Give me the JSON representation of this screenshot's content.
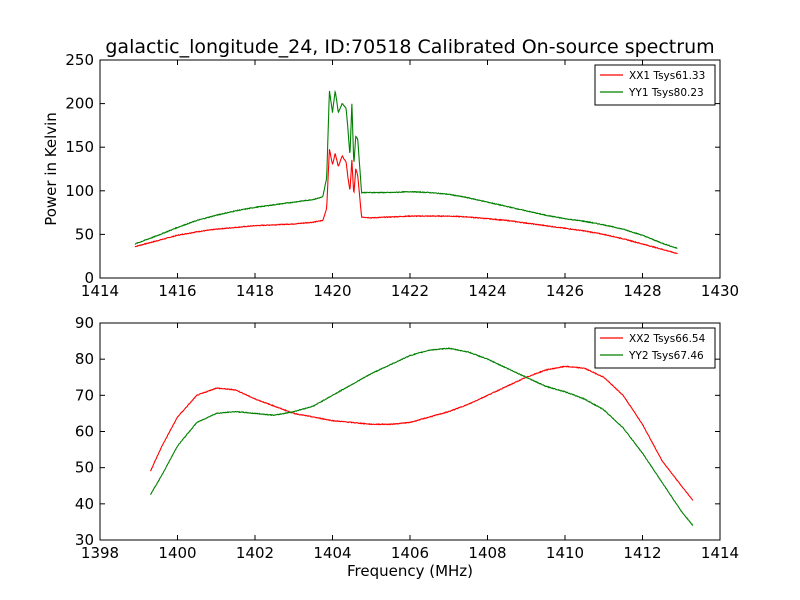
{
  "figure": {
    "title": "galactic_longitude_24, ID:70518 Calibrated On-source spectrum",
    "xlabel": "Frequency (MHz)"
  },
  "chart_data": [
    {
      "type": "line",
      "title": "galactic_longitude_24, ID:70518 Calibrated On-source spectrum",
      "xlabel": "",
      "ylabel": "Power in Kelvin",
      "xlim": [
        1414,
        1430
      ],
      "ylim": [
        0,
        250
      ],
      "xticks": [
        "1414",
        "1416",
        "1418",
        "1420",
        "1422",
        "1424",
        "1426",
        "1428",
        "1430"
      ],
      "yticks": [
        "0",
        "50",
        "100",
        "150",
        "200",
        "250"
      ],
      "grid": false,
      "legend": "upper right",
      "series": [
        {
          "name": "XX1 Tsys61.33",
          "color": "#ff0000",
          "x": [
            1414.9,
            1415.5,
            1416.0,
            1416.5,
            1417.0,
            1417.5,
            1418.0,
            1418.5,
            1419.0,
            1419.5,
            1419.75,
            1419.85,
            1419.92,
            1420.0,
            1420.07,
            1420.15,
            1420.25,
            1420.35,
            1420.4,
            1420.45,
            1420.5,
            1420.55,
            1420.6,
            1420.65,
            1420.75,
            1421.0,
            1421.5,
            1422.0,
            1422.5,
            1423.0,
            1423.5,
            1424.0,
            1424.5,
            1425.0,
            1425.5,
            1426.0,
            1426.5,
            1427.0,
            1427.5,
            1428.0,
            1428.5,
            1428.9
          ],
          "y": [
            36,
            43,
            49,
            53,
            56,
            58,
            60,
            61,
            62,
            64,
            66,
            80,
            148,
            130,
            143,
            128,
            140,
            133,
            115,
            100,
            135,
            95,
            125,
            118,
            70,
            69,
            70,
            71,
            71,
            71,
            70,
            68,
            66,
            63,
            60,
            57,
            54,
            50,
            45,
            39,
            33,
            28
          ]
        },
        {
          "name": "YY1 Tsys80.23",
          "color": "#008000",
          "x": [
            1414.9,
            1415.5,
            1416.0,
            1416.5,
            1417.0,
            1417.5,
            1418.0,
            1418.5,
            1419.0,
            1419.5,
            1419.75,
            1419.85,
            1419.92,
            1420.0,
            1420.07,
            1420.15,
            1420.25,
            1420.35,
            1420.4,
            1420.45,
            1420.5,
            1420.55,
            1420.6,
            1420.65,
            1420.75,
            1421.0,
            1421.5,
            1422.0,
            1422.5,
            1423.0,
            1423.5,
            1424.0,
            1424.5,
            1425.0,
            1425.5,
            1426.0,
            1426.5,
            1427.0,
            1427.5,
            1428.0,
            1428.5,
            1428.9
          ],
          "y": [
            39,
            49,
            58,
            66,
            72,
            77,
            81,
            84,
            87,
            90,
            93,
            115,
            215,
            190,
            215,
            190,
            200,
            195,
            170,
            140,
            200,
            130,
            162,
            160,
            98,
            98,
            98,
            99,
            98,
            96,
            92,
            87,
            82,
            77,
            72,
            68,
            65,
            61,
            56,
            49,
            40,
            34
          ]
        }
      ]
    },
    {
      "type": "line",
      "title": "",
      "xlabel": "Frequency (MHz)",
      "ylabel": "",
      "xlim": [
        1398,
        1414
      ],
      "ylim": [
        30,
        90
      ],
      "xticks": [
        "1398",
        "1400",
        "1402",
        "1404",
        "1406",
        "1408",
        "1410",
        "1412",
        "1414"
      ],
      "yticks": [
        "30",
        "40",
        "50",
        "60",
        "70",
        "80",
        "90"
      ],
      "grid": false,
      "legend": "upper right",
      "series": [
        {
          "name": "XX2 Tsys66.54",
          "color": "#ff0000",
          "x": [
            1399.3,
            1399.6,
            1400.0,
            1400.5,
            1401.0,
            1401.5,
            1402.0,
            1402.5,
            1403.0,
            1403.5,
            1404.0,
            1404.5,
            1405.0,
            1405.5,
            1406.0,
            1406.5,
            1407.0,
            1407.5,
            1408.0,
            1408.5,
            1409.0,
            1409.5,
            1410.0,
            1410.5,
            1411.0,
            1411.5,
            1412.0,
            1412.5,
            1413.0,
            1413.3
          ],
          "y": [
            49,
            56,
            64,
            70,
            72,
            71.5,
            69,
            67,
            65,
            64,
            63,
            62.5,
            62,
            62,
            62.5,
            64,
            65.5,
            67.5,
            70,
            72.5,
            75,
            77,
            78,
            77.5,
            75,
            70,
            62,
            52,
            45,
            41
          ]
        },
        {
          "name": "YY2 Tsys67.46",
          "color": "#008000",
          "x": [
            1399.3,
            1399.6,
            1400.0,
            1400.5,
            1401.0,
            1401.5,
            1402.0,
            1402.5,
            1403.0,
            1403.5,
            1404.0,
            1404.5,
            1405.0,
            1405.5,
            1406.0,
            1406.5,
            1407.0,
            1407.5,
            1408.0,
            1408.5,
            1409.0,
            1409.5,
            1410.0,
            1410.5,
            1411.0,
            1411.5,
            1412.0,
            1412.5,
            1413.0,
            1413.3
          ],
          "y": [
            42.5,
            48,
            56,
            62.5,
            65,
            65.5,
            65,
            64.5,
            65.5,
            67,
            70,
            73,
            76,
            78.5,
            81,
            82.5,
            83,
            82,
            80,
            77.5,
            75,
            72.5,
            71,
            69,
            66,
            61,
            54,
            46,
            38,
            34
          ]
        }
      ]
    }
  ]
}
